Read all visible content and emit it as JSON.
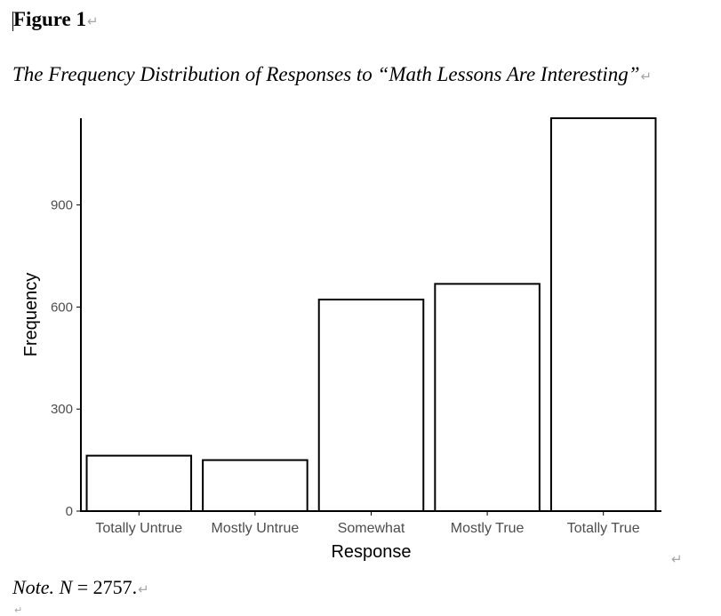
{
  "figure": {
    "label": "Figure 1",
    "title": "The Frequency Distribution of Responses to “Math Lessons Are Interesting”",
    "pilcrow": "↵"
  },
  "note": {
    "prefix": "Note.",
    "n_symbol": "N",
    "n_text": " = 2757."
  },
  "chart_data": {
    "type": "bar",
    "categories": [
      "Totally Untrue",
      "Mostly Untrue",
      "Somewhat",
      "Mostly True",
      "Totally True"
    ],
    "values": [
      163,
      150,
      622,
      668,
      1155
    ],
    "xlabel": "Response",
    "ylabel": "Frequency",
    "yticks": [
      0,
      300,
      600,
      900
    ],
    "ylim": [
      0,
      1155
    ],
    "bar_fill": "#ffffff",
    "bar_stroke": "#000000",
    "grid": false
  }
}
